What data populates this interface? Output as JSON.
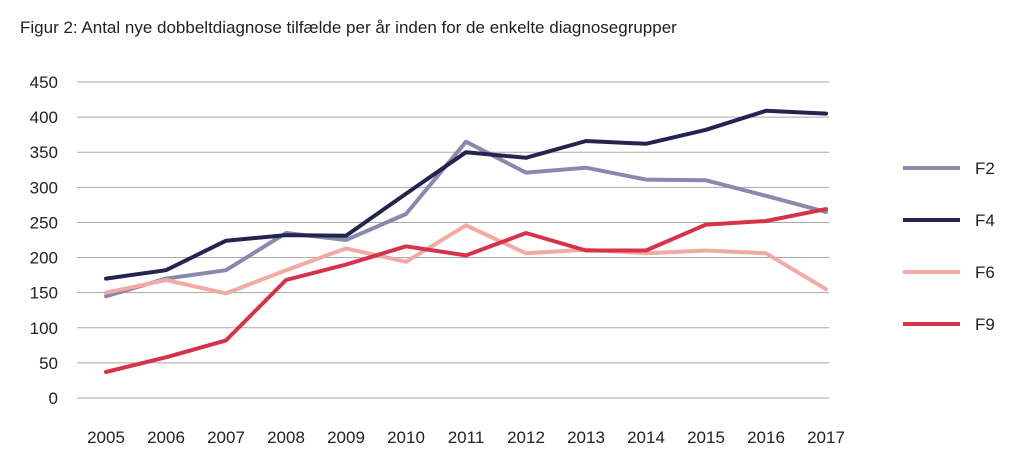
{
  "title": "Figur 2: Antal nye dobbeltdiagnose tilfælde per år inden for de enkelte diagnosegrupper",
  "chart_data": {
    "type": "line",
    "title": "Figur 2: Antal nye dobbeltdiagnose tilfælde per år inden for de enkelte diagnosegrupper",
    "xlabel": "",
    "ylabel": "",
    "x": [
      "2005",
      "2006",
      "2007",
      "2008",
      "2009",
      "2010",
      "2011",
      "2012",
      "2013",
      "2014",
      "2015",
      "2016",
      "2017"
    ],
    "ylim": [
      0,
      450
    ],
    "yticks": [
      0,
      50,
      100,
      150,
      200,
      250,
      300,
      350,
      400,
      450
    ],
    "grid": true,
    "legend_position": "right",
    "series": [
      {
        "name": "F2",
        "color": "#8a88ad",
        "values": [
          145,
          170,
          182,
          235,
          225,
          262,
          365,
          321,
          328,
          311,
          310,
          288,
          265
        ]
      },
      {
        "name": "F4",
        "color": "#23254f",
        "values": [
          170,
          182,
          224,
          232,
          231,
          291,
          350,
          342,
          366,
          362,
          382,
          409,
          405
        ]
      },
      {
        "name": "F6",
        "color": "#f2aaa4",
        "values": [
          150,
          168,
          149,
          182,
          213,
          194,
          246,
          206,
          211,
          206,
          210,
          206,
          155
        ]
      },
      {
        "name": "F9",
        "color": "#d6334a",
        "values": [
          37,
          58,
          82,
          168,
          190,
          216,
          203,
          235,
          210,
          210,
          247,
          252,
          269
        ]
      }
    ]
  }
}
